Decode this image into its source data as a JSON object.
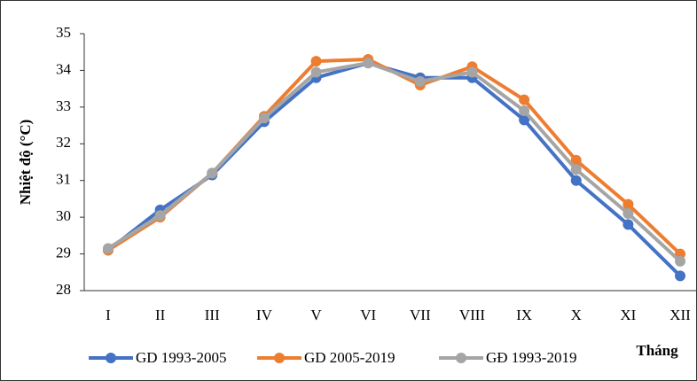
{
  "chart_data": {
    "type": "line",
    "y_label": "Nhiệt độ (°C)",
    "x_label": "Tháng",
    "categories": [
      "I",
      "II",
      "III",
      "IV",
      "V",
      "VI",
      "VII",
      "VIII",
      "IX",
      "X",
      "XI",
      "XII"
    ],
    "series": [
      {
        "name": "GD 1993-2005",
        "color": "#4472c4",
        "values": [
          29.1,
          30.2,
          31.15,
          32.6,
          33.8,
          34.2,
          33.8,
          33.8,
          32.65,
          31.0,
          29.8,
          28.4
        ]
      },
      {
        "name": "GD 2005-2019",
        "color": "#ed7d31",
        "values": [
          29.1,
          30.0,
          31.2,
          32.75,
          34.25,
          34.3,
          33.6,
          34.1,
          33.2,
          31.55,
          30.35,
          29.0
        ]
      },
      {
        "name": "GĐ 1993-2019",
        "color": "#a5a5a5",
        "values": [
          29.15,
          30.05,
          31.2,
          32.7,
          33.95,
          34.2,
          33.7,
          33.95,
          32.9,
          31.3,
          30.1,
          28.8
        ]
      }
    ],
    "ylim": [
      28,
      35
    ],
    "yticks": [
      28,
      29,
      30,
      31,
      32,
      33,
      34,
      35
    ],
    "grid": false
  }
}
